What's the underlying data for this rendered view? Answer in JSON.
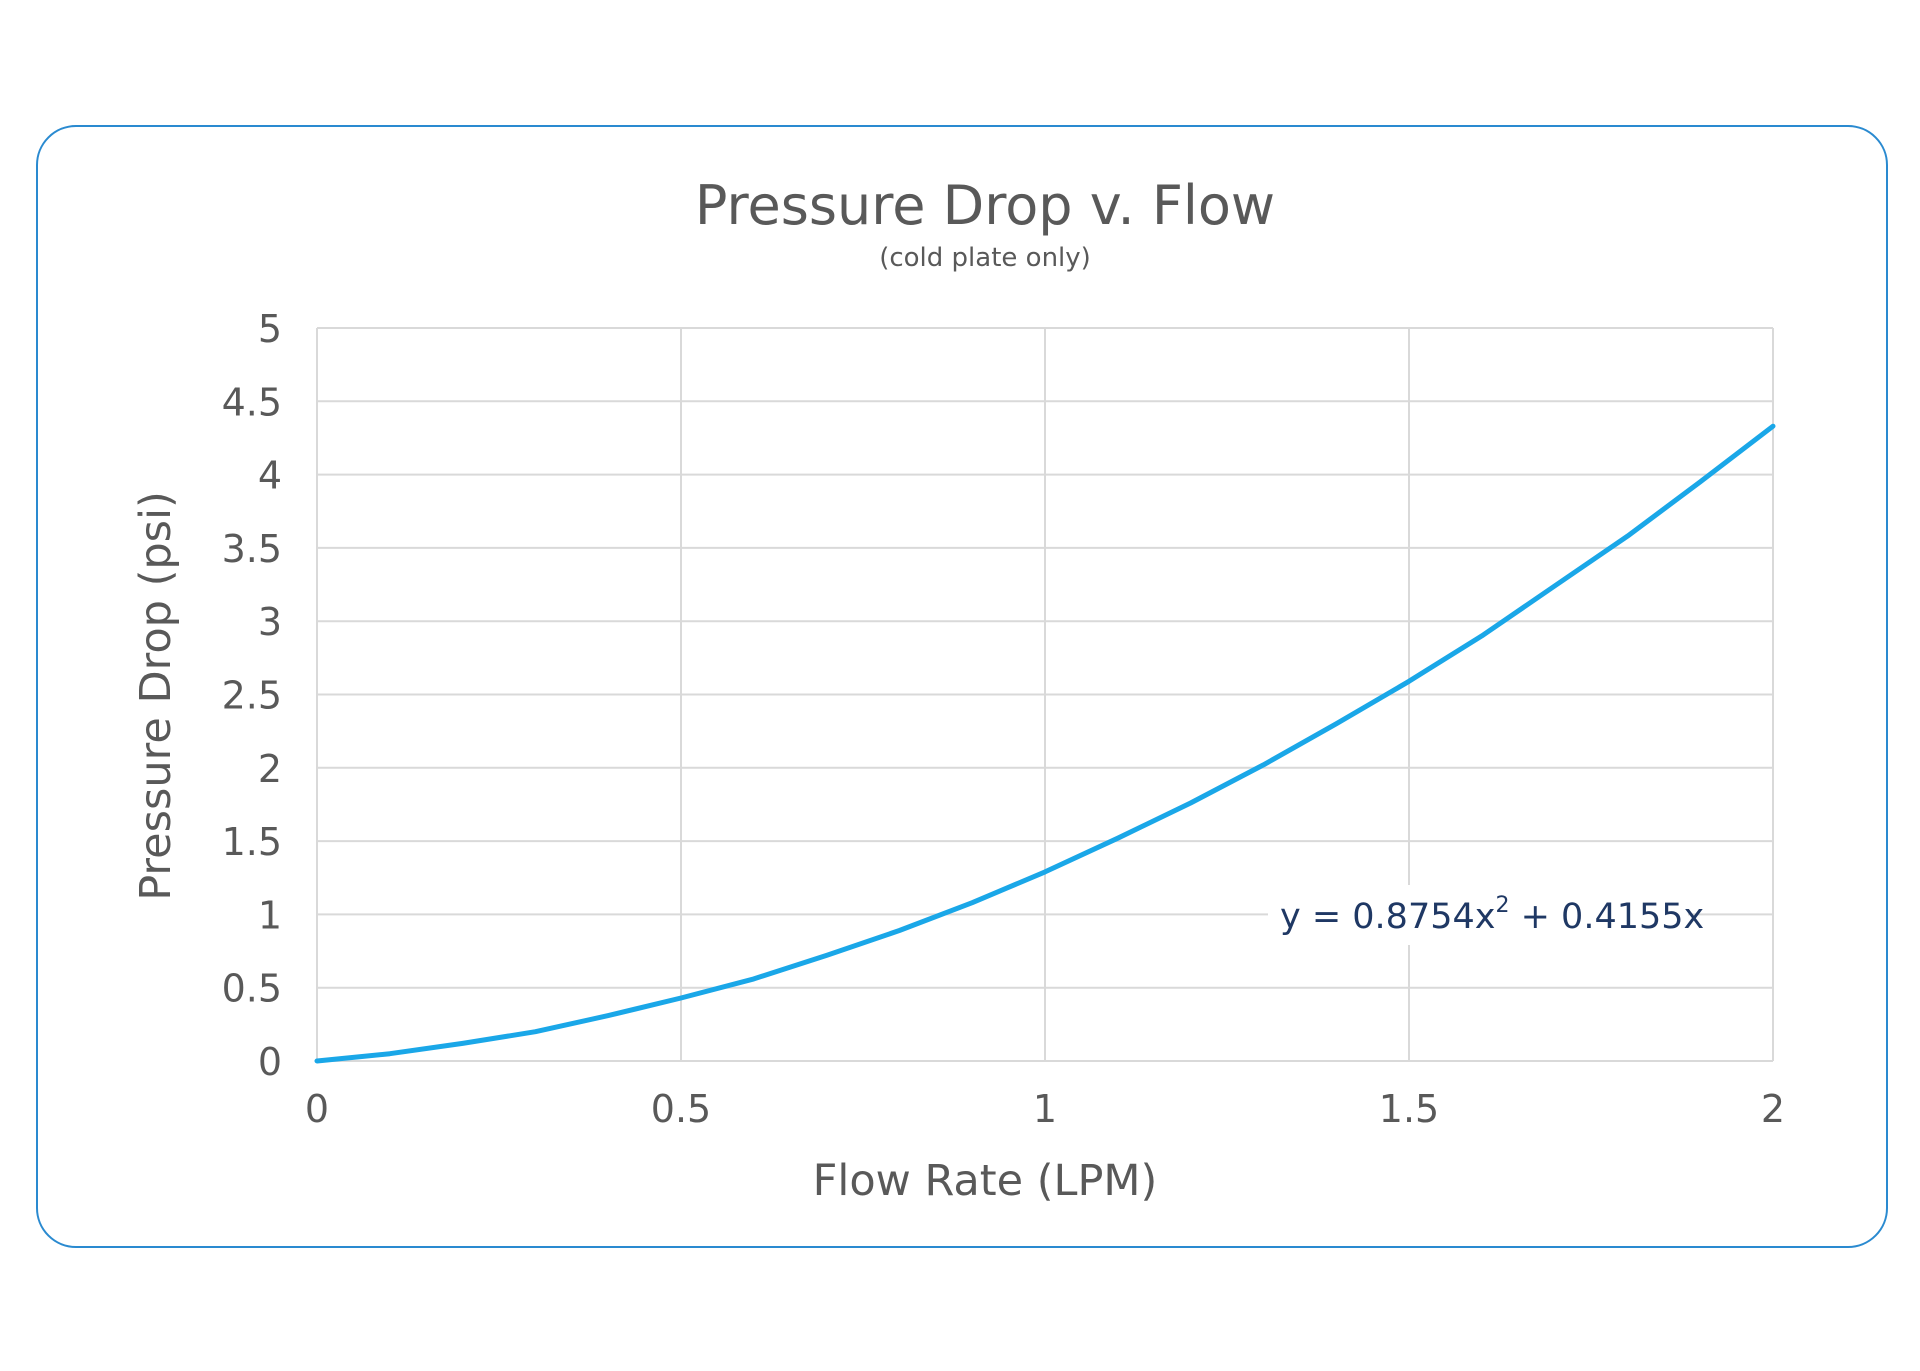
{
  "chart_data": {
    "type": "line",
    "title": "Pressure Drop v. Flow",
    "subtitle": "(cold plate only)",
    "xlabel": "Flow Rate (LPM)",
    "ylabel": "Pressure Drop (psi)",
    "xlim": [
      0,
      2
    ],
    "ylim": [
      0,
      5
    ],
    "x_ticks": [
      "0",
      "0.5",
      "1",
      "1.5",
      "2"
    ],
    "y_ticks": [
      "0",
      "0.5",
      "1",
      "1.5",
      "2",
      "2.5",
      "3",
      "3.5",
      "4",
      "4.5",
      "5"
    ],
    "grid": true,
    "legend": "none",
    "series": [
      {
        "color": "#1aa7e8",
        "x": [
          0,
          0.1,
          0.2,
          0.3,
          0.4,
          0.5,
          0.6,
          0.7,
          0.8,
          0.9,
          1.0,
          1.1,
          1.2,
          1.3,
          1.4,
          1.5,
          1.6,
          1.7,
          1.8,
          1.9,
          2.0
        ],
        "y": [
          0,
          0.05,
          0.12,
          0.2,
          0.31,
          0.43,
          0.56,
          0.72,
          0.89,
          1.08,
          1.29,
          1.52,
          1.76,
          2.02,
          2.3,
          2.59,
          2.9,
          3.24,
          3.58,
          3.95,
          4.33
        ]
      }
    ],
    "annotations": [
      {
        "text_prefix": "y = 0.8754x",
        "superscript": "2",
        "text_suffix": " + 0.4155x"
      }
    ]
  }
}
